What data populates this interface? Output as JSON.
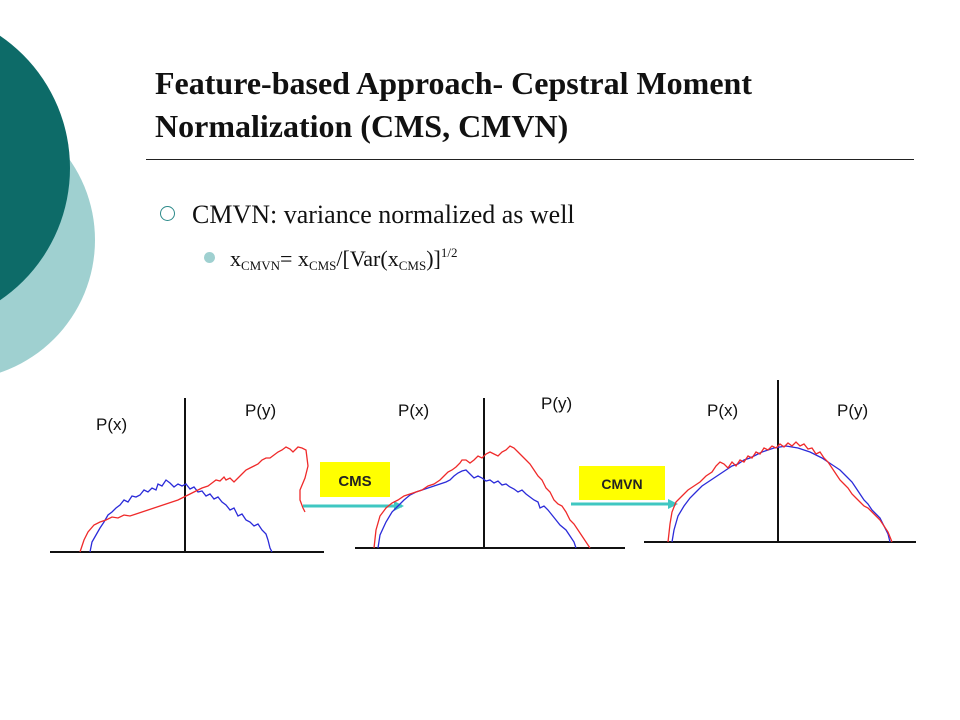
{
  "slide": {
    "title_line1": "Feature-based Approach- Cepstral Moment",
    "title_line2": "Normalization (CMS, CMVN)",
    "bullet": {
      "text": "CMVN: variance normalized as well"
    },
    "formula": {
      "x1": "x",
      "sub1": "CMVN",
      "eq": "= x",
      "sub2": "CMS",
      "mid": "/[Var(x",
      "sub3": "CMS",
      "close": ")]",
      "sup": "1/2"
    }
  },
  "diagram": {
    "panels": [
      {
        "label_x": "P(x)",
        "label_y": "P(y)"
      },
      {
        "label_x": "P(x)",
        "label_y": "P(y)"
      },
      {
        "label_x": "P(x)",
        "label_y": "P(y)"
      }
    ],
    "steps": [
      {
        "label": "CMS"
      },
      {
        "label": "CMVN"
      }
    ]
  },
  "colors": {
    "deco_dark": "#0d6b68",
    "deco_light": "#9fd0d0",
    "curve_x": "#2b2bd9",
    "curve_y": "#ef2a2a",
    "arrow": "#3fc7c2",
    "step_box": "#ffff00"
  }
}
